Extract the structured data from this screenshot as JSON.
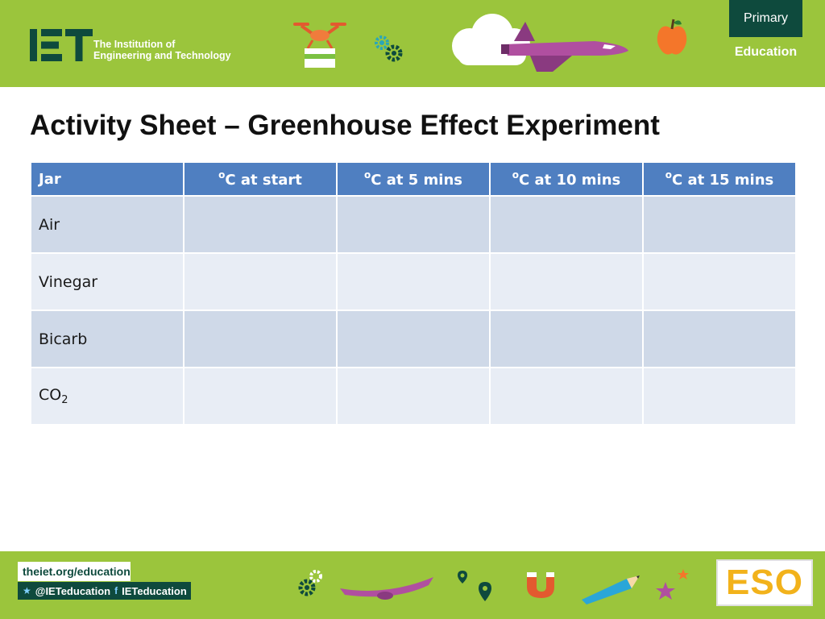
{
  "header": {
    "logo_text": "IET",
    "org_name_line1": "The Institution of",
    "org_name_line2": "Engineering and Technology",
    "badge_primary": "Primary",
    "badge_education": "Education"
  },
  "title": "Activity Sheet – Greenhouse Effect Experiment",
  "table": {
    "headers": [
      {
        "label": "Jar"
      },
      {
        "unit": "o",
        "label": "C at start"
      },
      {
        "unit": "o",
        "label": "C at 5 mins"
      },
      {
        "unit": "o",
        "label": "C at 10 mins"
      },
      {
        "unit": "o",
        "label": "C at 15 mins"
      }
    ],
    "rows": [
      {
        "label": "Air",
        "cells": [
          "",
          "",
          "",
          ""
        ]
      },
      {
        "label": "Vinegar",
        "cells": [
          "",
          "",
          "",
          ""
        ]
      },
      {
        "label": "Bicarb",
        "cells": [
          "",
          "",
          "",
          ""
        ]
      },
      {
        "label": "CO",
        "subscript": "2",
        "cells": [
          "",
          "",
          "",
          ""
        ]
      }
    ]
  },
  "footer": {
    "url": "theiet.org/education",
    "twitter": "@IETeducation",
    "facebook": "IETeducation",
    "eso_badge": "ESO"
  },
  "colors": {
    "banner_green": "#9bc53c",
    "dark_green": "#0e4a3d",
    "header_blue": "#4f7fc1",
    "row_dark": "#cfd9e8",
    "row_light": "#e8edf5",
    "eso_yellow": "#f2b21b"
  },
  "icons": [
    "drone-icon",
    "gears-icon",
    "cloud-icon",
    "space-shuttle-icon",
    "apple-icon",
    "plane-icon",
    "map-pin-icon",
    "magnet-icon",
    "pencil-icon",
    "stars-icon",
    "twitter-icon",
    "facebook-icon"
  ]
}
